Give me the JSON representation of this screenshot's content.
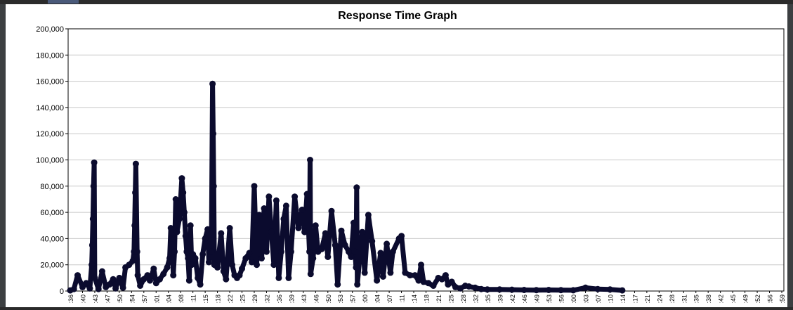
{
  "window": {
    "bar_color": "#2b2b2b"
  },
  "chart_data": {
    "type": "line",
    "title": "Response Time Graph",
    "ylabel": "",
    "xlabel": "",
    "ylim": [
      0,
      200000
    ],
    "yticks": [
      "0",
      "20,000",
      "40,000",
      "60,000",
      "80,000",
      "100,000",
      "120,000",
      "140,000",
      "160,000",
      "180,000",
      "200,000"
    ],
    "grid": true,
    "line_color": "#0b0b2e",
    "xtick_labels": [
      ":36",
      ":40",
      ":43",
      ":47",
      ":50",
      ":54",
      ":57",
      ":01",
      ":04",
      ":08",
      ":11",
      ":15",
      ":18",
      ":22",
      ":25",
      ":29",
      ":32",
      ":36",
      ":39",
      ":43",
      ":46",
      ":50",
      ":53",
      ":57",
      ":00",
      ":04",
      ":07",
      ":11",
      ":14",
      ":18",
      ":21",
      ":25",
      ":28",
      ":32",
      ":35",
      ":39",
      ":42",
      ":46",
      ":49",
      ":53",
      ":56",
      ":00",
      ":03",
      ":07",
      ":10",
      ":14",
      ":17",
      ":21",
      ":24",
      ":28",
      ":31",
      ":35",
      ":38",
      ":42",
      ":45",
      ":49",
      ":52",
      ":56",
      ":59"
    ],
    "series": [
      {
        "values": [
          [
            0,
            500
          ],
          [
            0.3,
            1500
          ],
          [
            0.6,
            12000
          ],
          [
            1,
            3000
          ],
          [
            1.3,
            6000
          ],
          [
            1.6,
            2000
          ],
          [
            1.75,
            20000
          ],
          [
            1.8,
            35000
          ],
          [
            1.85,
            55000
          ],
          [
            1.9,
            80000
          ],
          [
            1.95,
            98000
          ],
          [
            2,
            10000
          ],
          [
            2.3,
            1500
          ],
          [
            2.6,
            15000
          ],
          [
            2.9,
            3000
          ],
          [
            3.2,
            5000
          ],
          [
            3.5,
            9000
          ],
          [
            3.7,
            2000
          ],
          [
            4,
            10000
          ],
          [
            4.3,
            2500
          ],
          [
            4.5,
            18000
          ],
          [
            4.8,
            20000
          ],
          [
            5.1,
            23000
          ],
          [
            5.2,
            30000
          ],
          [
            5.25,
            50000
          ],
          [
            5.3,
            75000
          ],
          [
            5.35,
            97000
          ],
          [
            5.45,
            30000
          ],
          [
            5.5,
            12000
          ],
          [
            5.7,
            4000
          ],
          [
            6,
            9000
          ],
          [
            6.3,
            12000
          ],
          [
            6.5,
            8000
          ],
          [
            6.8,
            17000
          ],
          [
            7,
            6000
          ],
          [
            7.3,
            9000
          ],
          [
            7.6,
            13000
          ],
          [
            7.9,
            18000
          ],
          [
            8.1,
            25000
          ],
          [
            8.2,
            48000
          ],
          [
            8.3,
            40000
          ],
          [
            8.35,
            25000
          ],
          [
            8.4,
            12000
          ],
          [
            8.5,
            30000
          ],
          [
            8.6,
            70000
          ],
          [
            8.7,
            45000
          ],
          [
            8.9,
            55000
          ],
          [
            9.1,
            86000
          ],
          [
            9.2,
            75000
          ],
          [
            9.3,
            60000
          ],
          [
            9.4,
            42000
          ],
          [
            9.5,
            30000
          ],
          [
            9.6,
            25000
          ],
          [
            9.7,
            8000
          ],
          [
            9.8,
            50000
          ],
          [
            9.9,
            20000
          ],
          [
            10,
            28000
          ],
          [
            10.2,
            25000
          ],
          [
            10.4,
            10000
          ],
          [
            10.6,
            5000
          ],
          [
            10.8,
            28000
          ],
          [
            11,
            40000
          ],
          [
            11.2,
            47000
          ],
          [
            11.3,
            22000
          ],
          [
            11.5,
            30000
          ],
          [
            11.6,
            158000
          ],
          [
            11.65,
            120000
          ],
          [
            11.7,
            80000
          ],
          [
            11.75,
            20000
          ],
          [
            12,
            18000
          ],
          [
            12.3,
            44000
          ],
          [
            12.5,
            15000
          ],
          [
            12.7,
            9000
          ],
          [
            13,
            48000
          ],
          [
            13.2,
            20000
          ],
          [
            13.4,
            12000
          ],
          [
            13.6,
            10000
          ],
          [
            13.8,
            12000
          ],
          [
            14,
            17000
          ],
          [
            14.3,
            25000
          ],
          [
            14.6,
            29000
          ],
          [
            14.8,
            22000
          ],
          [
            15,
            80000
          ],
          [
            15.1,
            50000
          ],
          [
            15.2,
            20000
          ],
          [
            15.4,
            58000
          ],
          [
            15.6,
            25000
          ],
          [
            15.8,
            63000
          ],
          [
            16,
            30000
          ],
          [
            16.2,
            72000
          ],
          [
            16.4,
            45000
          ],
          [
            16.6,
            20000
          ],
          [
            16.8,
            69000
          ],
          [
            17,
            10000
          ],
          [
            17.2,
            30000
          ],
          [
            17.4,
            55000
          ],
          [
            17.6,
            65000
          ],
          [
            17.8,
            10000
          ],
          [
            18,
            30000
          ],
          [
            18.3,
            72000
          ],
          [
            18.6,
            48000
          ],
          [
            18.9,
            62000
          ],
          [
            19.1,
            45000
          ],
          [
            19.3,
            74000
          ],
          [
            19.5,
            30000
          ],
          [
            19.55,
            100000
          ],
          [
            19.6,
            13000
          ],
          [
            19.8,
            25000
          ],
          [
            20,
            50000
          ],
          [
            20.2,
            30000
          ],
          [
            20.5,
            32000
          ],
          [
            20.8,
            44000
          ],
          [
            21,
            26000
          ],
          [
            21.3,
            61000
          ],
          [
            21.6,
            35000
          ],
          [
            21.8,
            5000
          ],
          [
            22.1,
            46000
          ],
          [
            22.4,
            35000
          ],
          [
            22.7,
            30000
          ],
          [
            22.9,
            26000
          ],
          [
            23.1,
            52000
          ],
          [
            23.2,
            30000
          ],
          [
            23.3,
            18000
          ],
          [
            23.35,
            79000
          ],
          [
            23.4,
            5000
          ],
          [
            23.8,
            45000
          ],
          [
            24,
            14000
          ],
          [
            24.3,
            58000
          ],
          [
            24.6,
            38000
          ],
          [
            25,
            8000
          ],
          [
            25.3,
            29000
          ],
          [
            25.5,
            11000
          ],
          [
            25.8,
            36000
          ],
          [
            26.1,
            14000
          ],
          [
            26.3,
            30000
          ],
          [
            26.8,
            40000
          ],
          [
            27,
            42000
          ],
          [
            27.3,
            14000
          ],
          [
            27.7,
            12000
          ],
          [
            28.1,
            12000
          ],
          [
            28.4,
            8000
          ],
          [
            28.6,
            20000
          ],
          [
            28.8,
            7000
          ],
          [
            29.2,
            6000
          ],
          [
            29.6,
            4000
          ],
          [
            30,
            10000
          ],
          [
            30.3,
            9000
          ],
          [
            30.6,
            12000
          ],
          [
            30.8,
            5000
          ],
          [
            31.1,
            7000
          ],
          [
            31.4,
            3000
          ],
          [
            31.8,
            2000
          ],
          [
            32.2,
            4000
          ],
          [
            32.5,
            3500
          ],
          [
            33,
            2500
          ],
          [
            33.5,
            1500
          ],
          [
            34,
            1200
          ],
          [
            35,
            1200
          ],
          [
            36,
            1000
          ],
          [
            37,
            800
          ],
          [
            38,
            700
          ],
          [
            39,
            800
          ],
          [
            40,
            700
          ],
          [
            41,
            600
          ],
          [
            42,
            2500
          ],
          [
            43,
            1500
          ],
          [
            44,
            1200
          ],
          [
            45,
            500
          ]
        ]
      }
    ]
  }
}
